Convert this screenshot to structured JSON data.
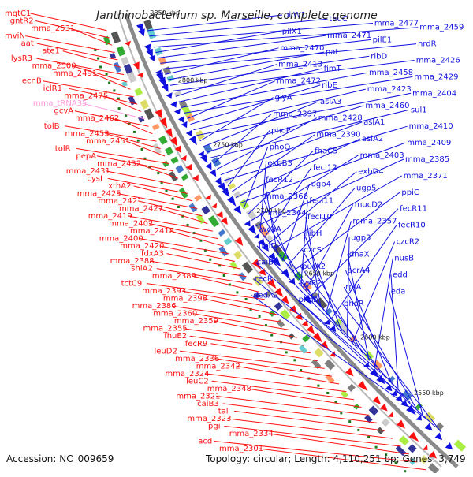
{
  "title": "Janthinobacterium sp. Marseille, complete genome",
  "accession": "Accession: NC_009659",
  "summary": "Topology: circular; Length: 4,110,251 bp; Genes: 3,749",
  "colors": {
    "forward": "#1010e0",
    "reverse": "#ff1010",
    "pseudo": "#ff99dd",
    "backbone": "#8a8a8a",
    "dot": "#1a7a1a"
  },
  "ticks": [
    "2850 kbp",
    "2800 kbp",
    "2750 kbp",
    "2700 kbp",
    "2650 kbp",
    "2600 kbp",
    "2550 kbp"
  ],
  "left_labels": [
    "mgtC1",
    "gntR2",
    "mma_2531",
    "mviN",
    "aat",
    "ate1",
    "lysR3",
    "mma_2500",
    "mma_2491",
    "ecnB",
    "iclR1",
    "mma_2475",
    "mma_tRNA35",
    "gcvA",
    "mma_2462",
    "tolB",
    "mma_2453",
    "mma_2451",
    "tolR",
    "pepA",
    "mma_2432",
    "mma_2431",
    "cysI",
    "xthA2",
    "mma_2425",
    "mma_2421",
    "mma_2427",
    "mma_2419",
    "mma_2402",
    "mma_2418",
    "mma_2400",
    "mma_2420",
    "fdxA3",
    "mma_2388",
    "shiA2",
    "mma_2389",
    "tctC9",
    "mma_2393",
    "mma_2398",
    "mma_2386",
    "mma_2360",
    "mma_2359",
    "mma_2355",
    "fhuE2",
    "fecR9",
    "leuD2",
    "mma_2336",
    "mma_2342",
    "mma_2324",
    "leuC2",
    "mma_2348",
    "mma_2321",
    "caiB3",
    "tal",
    "mma_2323",
    "pgi",
    "mma_2334",
    "acd",
    "mma_2301"
  ],
  "right_labels": [
    "pilW1",
    "tauC",
    "mma_2477",
    "mma_2459",
    "pilX1",
    "mma_2471",
    "pilE1",
    "nrdR",
    "mma_2470",
    "pat",
    "ribD",
    "mma_2426",
    "mma_2413",
    "fimT",
    "mma_2458",
    "mma_2429",
    "mma_2472",
    "ribE",
    "mma_2423",
    "mma_2404",
    "glyA",
    "aslA3",
    "mma_2460",
    "sul1",
    "mma_2397",
    "mma_2428",
    "aslA1",
    "mma_2410",
    "phoP",
    "mma_2390",
    "aslA2",
    "mma_2409",
    "phoQ",
    "fhaC5",
    "mma_2403",
    "mma_2385",
    "exbB3",
    "fecI12",
    "exbD4",
    "mma_2371",
    "fecR12",
    "ugp4",
    "ugp5",
    "ppiC",
    "mma_2366",
    "fecI11",
    "mucD2",
    "fecR11",
    "mma_2364",
    "fecI10",
    "mma_2357",
    "fecR10",
    "wcaA",
    "ribH",
    "ugp3",
    "czcR2",
    "ubiD",
    "czcS",
    "dnaX",
    "nusB",
    "caiB2",
    "purA2",
    "acrA4",
    "edd",
    "recR",
    "lysR2",
    "rpiA",
    "eda",
    "dedA2",
    "phnA",
    "phoR"
  ]
}
